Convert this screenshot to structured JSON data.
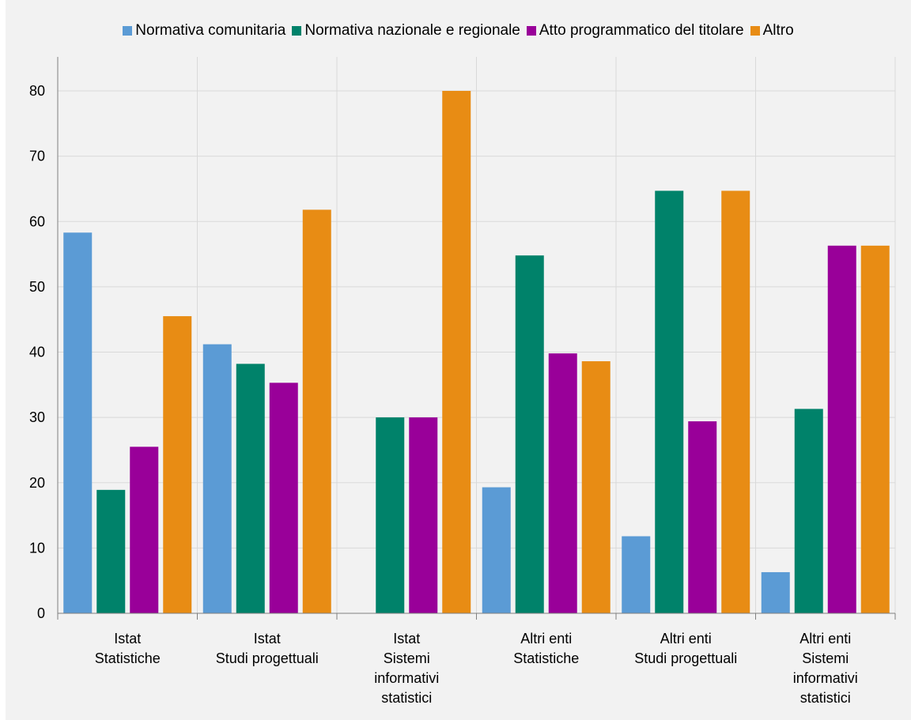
{
  "chart_data": {
    "type": "bar",
    "categories": [
      [
        "Istat",
        "Statistiche"
      ],
      [
        "Istat",
        "Studi progettuali"
      ],
      [
        "Istat",
        "Sistemi",
        "informativi",
        "statistici"
      ],
      [
        "Altri enti",
        "Statistiche"
      ],
      [
        "Altri enti",
        "Studi progettuali"
      ],
      [
        "Altri enti",
        "Sistemi",
        "informativi",
        "statistici"
      ]
    ],
    "series": [
      {
        "name": "Normativa comunitaria",
        "color": "#5b9bd5",
        "values": [
          58.3,
          41.2,
          0,
          19.3,
          11.8,
          6.3
        ]
      },
      {
        "name": "Normativa nazionale e regionale",
        "color": "#00826a",
        "values": [
          18.9,
          38.2,
          30.0,
          54.8,
          64.7,
          31.3
        ]
      },
      {
        "name": "Atto programmatico del titolare",
        "color": "#990099",
        "values": [
          25.5,
          35.3,
          30.0,
          39.8,
          29.4,
          56.3
        ]
      },
      {
        "name": "Altro",
        "color": "#e88c14",
        "values": [
          45.5,
          61.8,
          80.0,
          38.6,
          64.7,
          56.3
        ]
      }
    ],
    "yticks": [
      0,
      10,
      20,
      30,
      40,
      50,
      60,
      70,
      80
    ],
    "ylim": [
      0,
      80
    ],
    "title": "",
    "xlabel": "",
    "ylabel": "",
    "grid": true,
    "legend_position": "top"
  }
}
